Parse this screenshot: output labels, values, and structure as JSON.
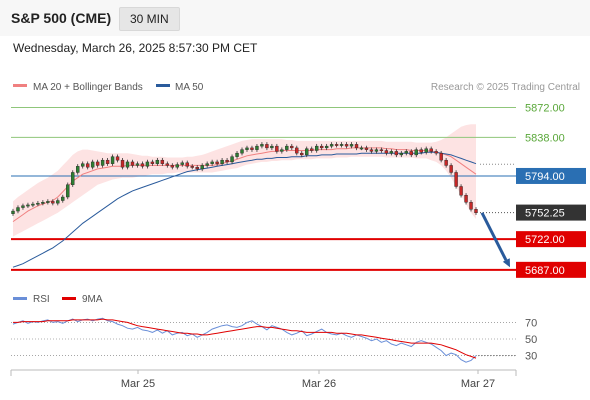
{
  "header": {
    "symbol": "S&P 500 (CME)",
    "interval": "30 MIN",
    "datetime": "Wednesday, March 26, 2025 8:57:30 PM CET"
  },
  "legend": {
    "ma20_bb": "MA 20 + Bollinger Bands",
    "ma50": "MA 50",
    "credit": "Research © 2025 Trading Central"
  },
  "rsi_legend": {
    "rsi": "RSI",
    "ma9": "9MA"
  },
  "colors": {
    "ma20": "#f08080",
    "bb_fill": "#fde0e0",
    "ma50": "#2a5b9c",
    "resistance": "#8fc67a",
    "pivot": "#2a6fb3",
    "support": "#e00000",
    "price_tag": "#333333",
    "candle_up": "#2e7d32",
    "candle_down": "#c62828",
    "rsi_line": "#6a8fd8",
    "rsi_ma": "#e00000",
    "arrow": "#2a5b9c"
  },
  "chart_data": {
    "type": "candlestick",
    "y_range": [
      5672,
      5884
    ],
    "x_labels": [
      "Mar 25",
      "Mar 26",
      "Mar 27"
    ],
    "levels": [
      {
        "value": 5872.0,
        "label": "5872.00",
        "kind": "resistance"
      },
      {
        "value": 5838.0,
        "label": "5838.00",
        "kind": "resistance"
      },
      {
        "value": 5794.0,
        "label": "5794.00",
        "kind": "pivot"
      },
      {
        "value": 5722.0,
        "label": "5722.00",
        "kind": "support"
      },
      {
        "value": 5687.0,
        "label": "5687.00",
        "kind": "support"
      }
    ],
    "last_price": {
      "value": 5752.25,
      "label": "5752.25"
    },
    "forecast_arrow": {
      "from": 5752,
      "to": 5690
    },
    "closes": [
      5754,
      5758,
      5760,
      5761,
      5762,
      5763,
      5764,
      5765,
      5763,
      5766,
      5770,
      5784,
      5798,
      5805,
      5808,
      5804,
      5810,
      5806,
      5812,
      5808,
      5816,
      5812,
      5804,
      5810,
      5806,
      5808,
      5805,
      5810,
      5808,
      5812,
      5808,
      5806,
      5804,
      5807,
      5809,
      5805,
      5804,
      5802,
      5806,
      5808,
      5810,
      5808,
      5812,
      5810,
      5816,
      5820,
      5824,
      5826,
      5824,
      5828,
      5830,
      5826,
      5828,
      5822,
      5824,
      5828,
      5826,
      5820,
      5818,
      5825,
      5823,
      5828,
      5826,
      5828,
      5830,
      5829,
      5830,
      5828,
      5830,
      5826,
      5826,
      5824,
      5822,
      5824,
      5823,
      5820,
      5822,
      5818,
      5820,
      5822,
      5818,
      5824,
      5821,
      5825,
      5822,
      5820,
      5812,
      5806,
      5798,
      5782,
      5772,
      5764,
      5756,
      5752
    ],
    "ma20": [
      5742,
      5746,
      5750,
      5754,
      5757,
      5760,
      5762,
      5764,
      5766,
      5770,
      5776,
      5782,
      5788,
      5792,
      5796,
      5798,
      5800,
      5802,
      5803,
      5804,
      5805,
      5805,
      5805,
      5806,
      5806,
      5806,
      5806,
      5806,
      5806,
      5806,
      5806,
      5806,
      5806,
      5806,
      5806,
      5806,
      5806,
      5806,
      5806,
      5806,
      5806,
      5807,
      5808,
      5810,
      5811,
      5813,
      5815,
      5817,
      5818,
      5819,
      5820,
      5821,
      5822,
      5822,
      5823,
      5823,
      5823,
      5823,
      5823,
      5823,
      5823,
      5824,
      5824,
      5824,
      5824,
      5825,
      5825,
      5825,
      5826,
      5826,
      5826,
      5826,
      5826,
      5826,
      5826,
      5825,
      5825,
      5824,
      5824,
      5824,
      5823,
      5823,
      5823,
      5823,
      5822,
      5821,
      5820,
      5818,
      5816,
      5812,
      5808,
      5804,
      5800,
      5796
    ],
    "bb_upper": [
      5765,
      5770,
      5774,
      5778,
      5782,
      5786,
      5789,
      5792,
      5796,
      5800,
      5806,
      5812,
      5818,
      5822,
      5824,
      5824,
      5823,
      5822,
      5821,
      5820,
      5820,
      5820,
      5820,
      5820,
      5819,
      5818,
      5817,
      5817,
      5816,
      5816,
      5816,
      5815,
      5815,
      5815,
      5815,
      5816,
      5816,
      5817,
      5818,
      5820,
      5822,
      5824,
      5826,
      5828,
      5830,
      5832,
      5834,
      5835,
      5836,
      5836,
      5836,
      5836,
      5836,
      5836,
      5836,
      5835,
      5835,
      5834,
      5834,
      5834,
      5834,
      5834,
      5834,
      5834,
      5834,
      5834,
      5834,
      5834,
      5834,
      5834,
      5834,
      5834,
      5834,
      5834,
      5834,
      5833,
      5833,
      5833,
      5833,
      5833,
      5833,
      5832,
      5832,
      5832,
      5832,
      5833,
      5835,
      5838,
      5842,
      5846,
      5850,
      5852,
      5853,
      5853
    ],
    "bb_lower": [
      5725,
      5728,
      5731,
      5734,
      5737,
      5740,
      5743,
      5746,
      5749,
      5752,
      5756,
      5760,
      5764,
      5768,
      5772,
      5776,
      5780,
      5784,
      5786,
      5788,
      5790,
      5791,
      5792,
      5792,
      5792,
      5793,
      5794,
      5795,
      5796,
      5796,
      5796,
      5797,
      5797,
      5798,
      5798,
      5798,
      5798,
      5798,
      5798,
      5798,
      5798,
      5799,
      5800,
      5801,
      5802,
      5803,
      5805,
      5807,
      5808,
      5809,
      5810,
      5810,
      5811,
      5811,
      5812,
      5812,
      5812,
      5813,
      5813,
      5813,
      5813,
      5814,
      5814,
      5814,
      5814,
      5815,
      5815,
      5815,
      5816,
      5816,
      5816,
      5816,
      5816,
      5816,
      5816,
      5815,
      5815,
      5815,
      5815,
      5815,
      5815,
      5814,
      5814,
      5814,
      5812,
      5810,
      5806,
      5800,
      5792,
      5782,
      5772,
      5762,
      5752,
      5745
    ],
    "ma50": [
      5690,
      5692,
      5694,
      5697,
      5700,
      5703,
      5706,
      5709,
      5712,
      5716,
      5720,
      5725,
      5730,
      5735,
      5740,
      5744,
      5748,
      5752,
      5756,
      5760,
      5764,
      5768,
      5771,
      5774,
      5777,
      5779,
      5781,
      5783,
      5785,
      5787,
      5789,
      5791,
      5793,
      5795,
      5797,
      5799,
      5800,
      5801,
      5802,
      5803,
      5804,
      5805,
      5806,
      5807,
      5808,
      5809,
      5810,
      5811,
      5812,
      5813,
      5813,
      5814,
      5814,
      5815,
      5815,
      5815,
      5816,
      5816,
      5816,
      5817,
      5817,
      5817,
      5818,
      5818,
      5818,
      5819,
      5819,
      5819,
      5819,
      5819,
      5820,
      5820,
      5820,
      5820,
      5820,
      5820,
      5820,
      5820,
      5820,
      5820,
      5820,
      5820,
      5820,
      5821,
      5821,
      5821,
      5820,
      5819,
      5818,
      5816,
      5814,
      5812,
      5810,
      5808
    ],
    "rsi": {
      "levels": [
        70,
        50,
        30
      ],
      "range": [
        15,
        85
      ],
      "rsi": [
        68,
        70,
        72,
        69,
        71,
        70,
        72,
        73,
        70,
        71,
        69,
        72,
        74,
        71,
        73,
        74,
        72,
        74,
        75,
        72,
        71,
        68,
        66,
        63,
        62,
        64,
        61,
        60,
        58,
        61,
        57,
        60,
        55,
        57,
        58,
        54,
        56,
        52,
        55,
        58,
        62,
        64,
        66,
        67,
        65,
        64,
        66,
        70,
        72,
        68,
        65,
        61,
        66,
        64,
        62,
        58,
        55,
        57,
        60,
        54,
        56,
        59,
        62,
        58,
        56,
        55,
        57,
        54,
        52,
        55,
        53,
        51,
        48,
        50,
        46,
        48,
        44,
        42,
        45,
        43,
        41,
        46,
        48,
        46,
        44,
        40,
        36,
        30,
        33,
        31,
        25,
        22,
        24,
        30
      ],
      "ma9": [
        70,
        70,
        71,
        71,
        71,
        71,
        71,
        72,
        72,
        72,
        72,
        72,
        73,
        73,
        73,
        73,
        73,
        73,
        74,
        73,
        73,
        72,
        71,
        70,
        68,
        66,
        65,
        64,
        63,
        62,
        61,
        60,
        59,
        58,
        57,
        57,
        56,
        56,
        55,
        55,
        56,
        57,
        58,
        59,
        60,
        61,
        62,
        63,
        64,
        65,
        65,
        64,
        64,
        63,
        62,
        61,
        60,
        60,
        59,
        58,
        58,
        58,
        58,
        58,
        58,
        57,
        57,
        57,
        56,
        55,
        55,
        54,
        53,
        52,
        51,
        50,
        49,
        48,
        47,
        46,
        45,
        45,
        45,
        45,
        45,
        44,
        43,
        41,
        39,
        37,
        34,
        31,
        29,
        27
      ]
    }
  }
}
